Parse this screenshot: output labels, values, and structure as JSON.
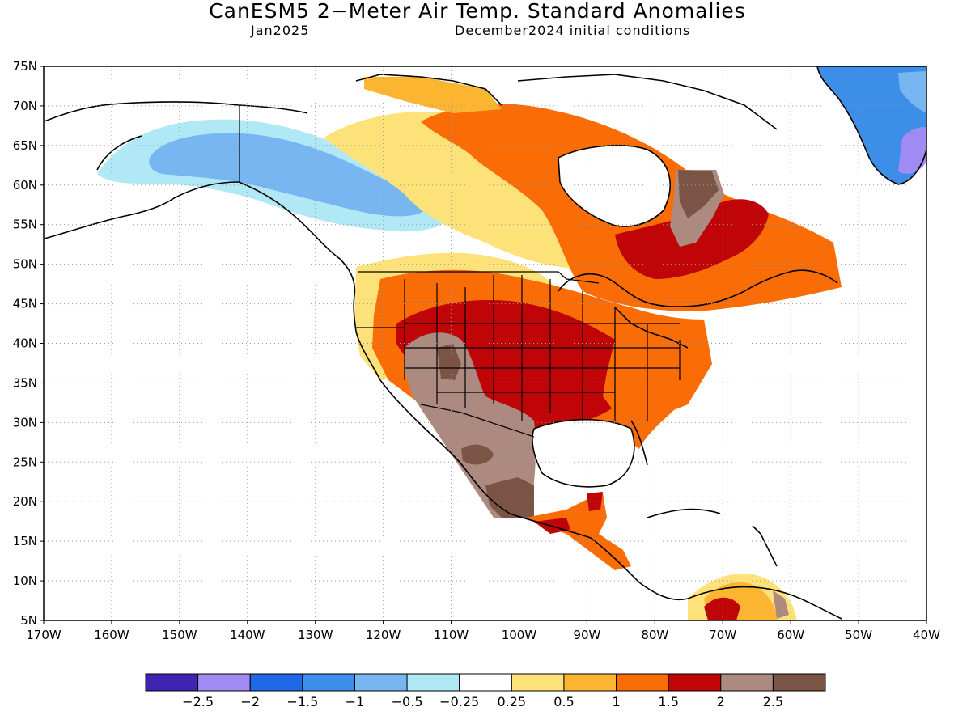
{
  "title": "CanESM5 2−Meter Air Temp. Standard Anomalies",
  "subtitle_left": "Jan2025",
  "subtitle_right": "December2024 initial conditions",
  "map": {
    "lon_range": [
      -170,
      -40
    ],
    "lat_range": [
      5,
      75
    ],
    "lat_ticks": [
      "5N",
      "10N",
      "15N",
      "20N",
      "25N",
      "30N",
      "35N",
      "40N",
      "45N",
      "50N",
      "55N",
      "60N",
      "65N",
      "70N",
      "75N"
    ],
    "lon_ticks": [
      "170W",
      "160W",
      "150W",
      "140W",
      "130W",
      "120W",
      "110W",
      "100W",
      "90W",
      "80W",
      "70W",
      "60W",
      "50W",
      "40W"
    ],
    "grid": "dotted",
    "regions": [
      "northwest-canada-light-blue",
      "alaska-blue",
      "greenland-blue",
      "central-canada-orange",
      "hudson-bay-orange",
      "quebec-dark-red",
      "western-us-yellow",
      "central-us-dark-red",
      "southwest-us-brown",
      "mexico-brown",
      "southeast-us-orange",
      "central-america-orange",
      "venezuela-yellow-orange"
    ]
  },
  "colorbar": {
    "colors": [
      "#3f24b3",
      "#a08bf5",
      "#1f68e6",
      "#3d8ee8",
      "#78b6f2",
      "#b0e8f6",
      "#ffffff",
      "#fde27a",
      "#fbb531",
      "#f96c06",
      "#bf0508",
      "#ad8a80",
      "#7b5446"
    ],
    "labels": [
      "−2.5",
      "−2",
      "−1.5",
      "−1",
      "−0.5",
      "−0.25",
      "0.25",
      "0.5",
      "1",
      "1.5",
      "2",
      "2.5"
    ]
  }
}
